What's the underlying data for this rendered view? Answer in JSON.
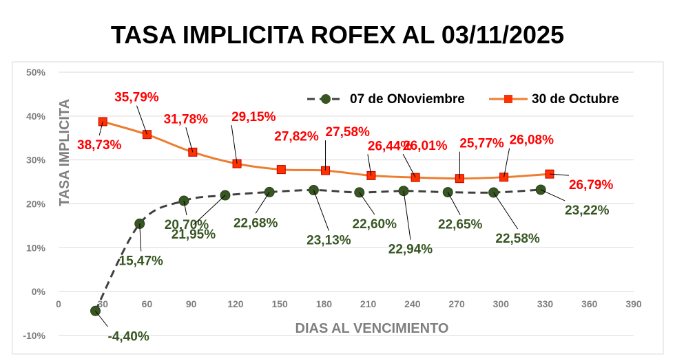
{
  "chart_data": {
    "type": "line",
    "title": "TASA IMPLICITA ROFEX AL 03/11/2025",
    "xlabel": "DIAS AL VENCIMIENTO",
    "ylabel": "TASA IMPLICITA",
    "xlim": [
      0,
      390
    ],
    "ylim": [
      -10,
      50
    ],
    "x_ticks": [
      "0",
      "30",
      "60",
      "90",
      "120",
      "150",
      "180",
      "210",
      "240",
      "270",
      "300",
      "330",
      "360",
      "390"
    ],
    "y_ticks": [
      "-10%",
      "0%",
      "10%",
      "20%",
      "30%",
      "40%",
      "50%"
    ],
    "legend_position": "top-right",
    "series": [
      {
        "name": "07 de ONoviembre",
        "color": "#375623",
        "line_color": "#404040",
        "marker": "circle",
        "line_style": "dashed-smooth",
        "x": [
          25,
          55,
          85,
          113,
          143,
          173,
          204,
          234,
          264,
          295,
          327
        ],
        "y": [
          -4.4,
          15.47,
          20.7,
          21.95,
          22.68,
          23.13,
          22.6,
          22.94,
          22.65,
          22.58,
          23.22
        ],
        "labels": [
          "-4,40%",
          "15,47%",
          "20,70%",
          "21,95%",
          "22,68%",
          "23,13%",
          "22,60%",
          "22,94%",
          "22,65%",
          "22,58%",
          "23,22%"
        ]
      },
      {
        "name": "30 de Octubre",
        "color": "#ff0000",
        "line_color": "#ed7d31",
        "marker_color": "#ff3300",
        "marker": "square",
        "line_style": "solid-smooth",
        "x": [
          30,
          60,
          91,
          121,
          151,
          181,
          212,
          242,
          272,
          302,
          333
        ],
        "y": [
          38.73,
          35.79,
          31.78,
          29.15,
          27.82,
          27.58,
          26.44,
          26.01,
          25.77,
          26.08,
          26.79
        ],
        "labels": [
          "38,73%",
          "35,79%",
          "31,78%",
          "29,15%",
          "27,82%",
          "27,58%",
          "26,44%",
          "26,01%",
          "25,77%",
          "26,08%",
          "26,79%"
        ]
      }
    ]
  }
}
